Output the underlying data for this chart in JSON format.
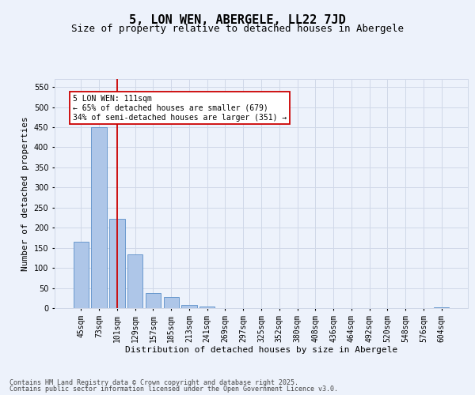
{
  "title": "5, LON WEN, ABERGELE, LL22 7JD",
  "subtitle": "Size of property relative to detached houses in Abergele",
  "xlabel": "Distribution of detached houses by size in Abergele",
  "ylabel": "Number of detached properties",
  "categories": [
    "45sqm",
    "73sqm",
    "101sqm",
    "129sqm",
    "157sqm",
    "185sqm",
    "213sqm",
    "241sqm",
    "269sqm",
    "297sqm",
    "325sqm",
    "352sqm",
    "380sqm",
    "408sqm",
    "436sqm",
    "464sqm",
    "492sqm",
    "520sqm",
    "548sqm",
    "576sqm",
    "604sqm"
  ],
  "values": [
    165,
    450,
    222,
    133,
    37,
    27,
    8,
    4,
    0,
    0,
    0,
    0,
    0,
    0,
    0,
    0,
    0,
    0,
    0,
    0,
    2
  ],
  "bar_color": "#aec6e8",
  "bar_edge_color": "#5b8fc9",
  "grid_color": "#d0d8e8",
  "background_color": "#edf2fb",
  "annotation_box_text": "5 LON WEN: 111sqm\n← 65% of detached houses are smaller (679)\n34% of semi-detached houses are larger (351) →",
  "annotation_box_color": "#cc0000",
  "vline_x_index": 2,
  "vline_color": "#cc0000",
  "ylim": [
    0,
    570
  ],
  "yticks": [
    0,
    50,
    100,
    150,
    200,
    250,
    300,
    350,
    400,
    450,
    500,
    550
  ],
  "footer_line1": "Contains HM Land Registry data © Crown copyright and database right 2025.",
  "footer_line2": "Contains public sector information licensed under the Open Government Licence v3.0.",
  "title_fontsize": 11,
  "subtitle_fontsize": 9,
  "label_fontsize": 8,
  "tick_fontsize": 7,
  "footer_fontsize": 6,
  "annotation_fontsize": 7
}
